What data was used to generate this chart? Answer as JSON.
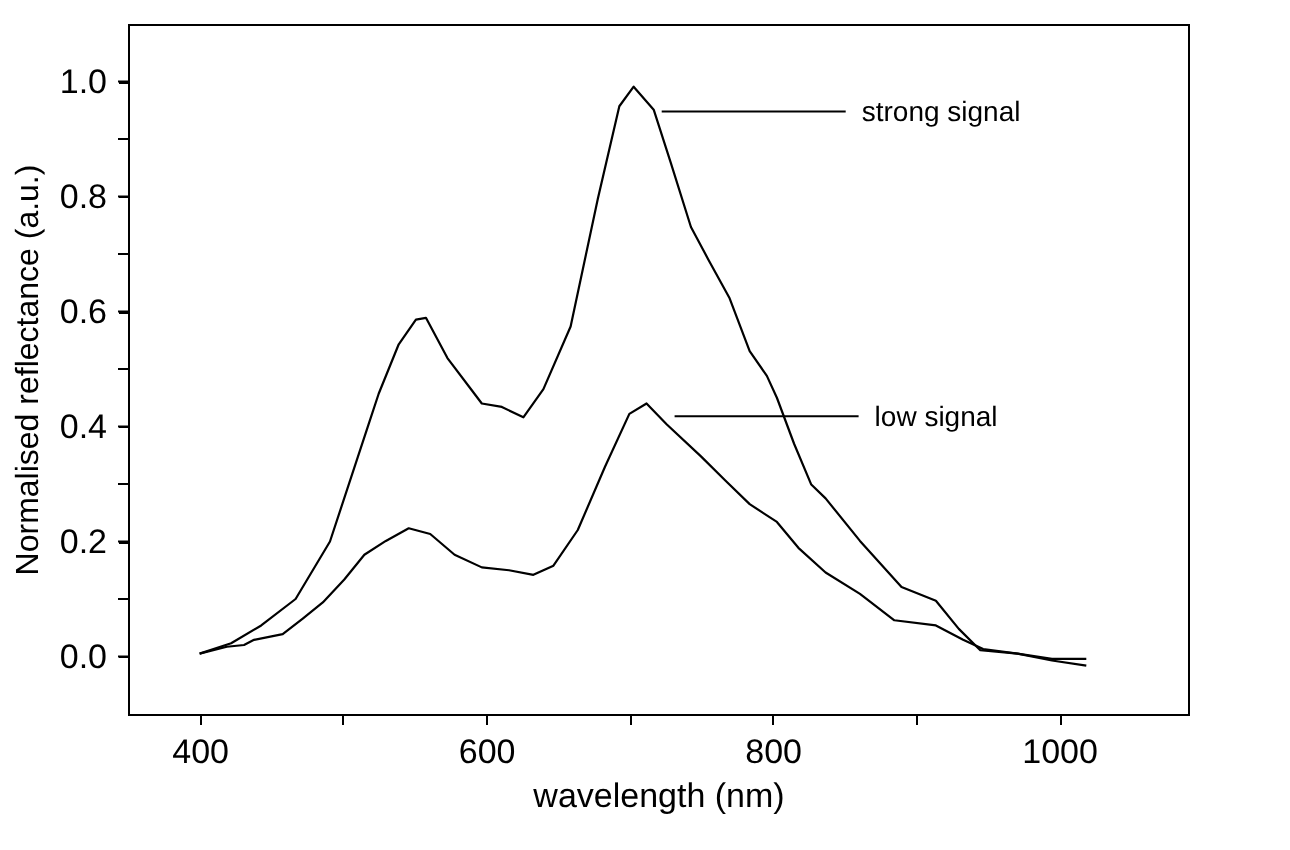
{
  "chart_data": {
    "type": "line",
    "xlabel": "wavelength (nm)",
    "ylabel": "Normalised reflectance (a.u.)",
    "xlim": [
      350,
      1090
    ],
    "ylim": [
      -0.1,
      1.1
    ],
    "xticks": [
      400,
      {
        "value": 500,
        "label": null
      },
      600,
      {
        "value": 700,
        "label": null
      },
      800,
      {
        "value": 900,
        "label": null
      },
      1000
    ],
    "yticks": [
      {
        "value": 0,
        "label": "0.0"
      },
      {
        "value": 0.1,
        "label": null
      },
      {
        "value": 0.2,
        "label": "0.2"
      },
      {
        "value": 0.3,
        "label": null
      },
      {
        "value": 0.4,
        "label": "0.4"
      },
      {
        "value": 0.5,
        "label": null
      },
      {
        "value": 0.6,
        "label": "0.6"
      },
      {
        "value": 0.7,
        "label": null
      },
      {
        "value": 0.8,
        "label": "0.8"
      },
      {
        "value": 0.9,
        "label": null
      },
      {
        "value": 1.0,
        "label": "1.0"
      }
    ],
    "annotations": [
      {
        "text": "strong signal",
        "x": 717,
        "y": 0.948
      },
      {
        "text": "low signal",
        "x": 726,
        "y": 0.418
      }
    ],
    "grid": false,
    "marker": "none",
    "line_style": "solid",
    "series": [
      {
        "color": "#000000",
        "x": [
          400,
          422,
          443,
          467,
          491,
          518,
          525,
          539,
          551,
          558,
          573,
          590,
          597,
          611,
          626,
          640,
          659,
          678,
          693,
          703,
          717,
          729,
          743,
          755,
          770,
          784,
          796,
          803,
          815,
          827,
          837,
          861,
          890,
          914,
          930,
          945,
          971,
          995,
          1019
        ],
        "values": [
          0.005,
          0.023,
          0.054,
          0.1,
          0.2,
          0.404,
          0.457,
          0.543,
          0.586,
          0.589,
          0.519,
          0.463,
          0.44,
          0.434,
          0.416,
          0.465,
          0.574,
          0.796,
          0.957,
          0.991,
          0.951,
          0.858,
          0.747,
          0.691,
          0.623,
          0.531,
          0.488,
          0.45,
          0.37,
          0.299,
          0.275,
          0.201,
          0.121,
          0.097,
          0.048,
          0.011,
          0.005,
          -0.007,
          -0.016
        ]
      },
      {
        "color": "#000000",
        "x": [
          400,
          419,
          431,
          438,
          458,
          472,
          486,
          501,
          515,
          530,
          546,
          561,
          578,
          597,
          616,
          633,
          647,
          664,
          683,
          700,
          712,
          726,
          750,
          767,
          784,
          803,
          818,
          837,
          861,
          885,
          914,
          933,
          947,
          971,
          995,
          1019
        ],
        "values": [
          0.005,
          0.017,
          0.02,
          0.029,
          0.039,
          0.066,
          0.094,
          0.134,
          0.177,
          0.201,
          0.223,
          0.213,
          0.177,
          0.155,
          0.15,
          0.142,
          0.158,
          0.22,
          0.33,
          0.422,
          0.44,
          0.404,
          0.348,
          0.306,
          0.265,
          0.234,
          0.189,
          0.146,
          0.109,
          0.063,
          0.054,
          0.029,
          0.013,
          0.005,
          -0.004,
          -0.004
        ]
      }
    ]
  }
}
